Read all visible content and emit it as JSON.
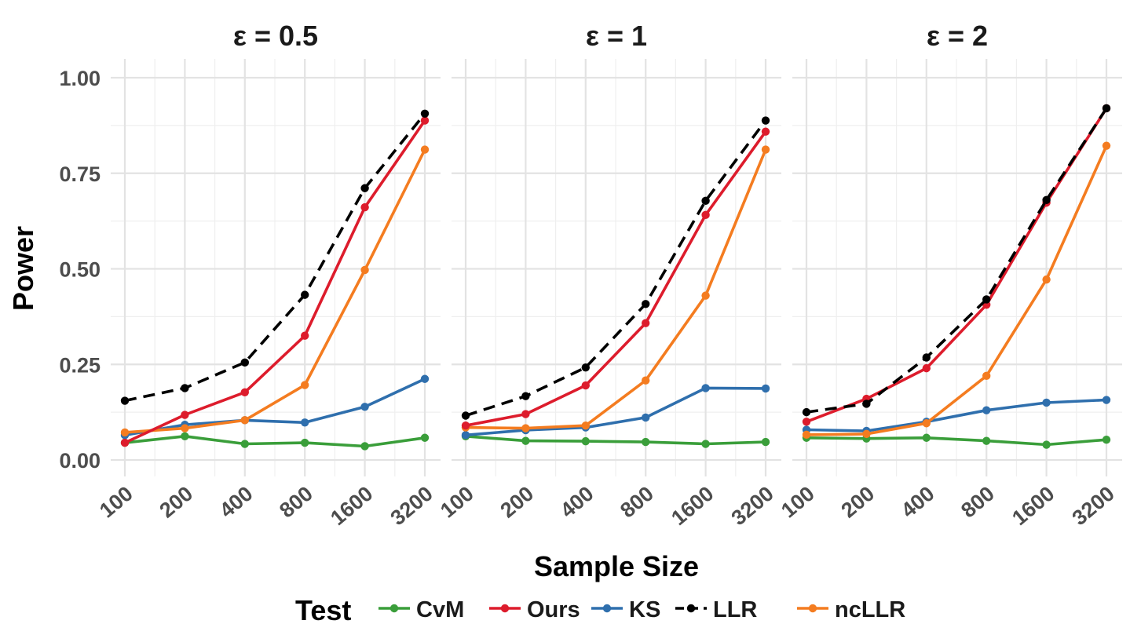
{
  "chart_data": {
    "type": "line",
    "xlabel": "Sample Size",
    "ylabel": "Power",
    "x_scale": "log2",
    "categories": [
      "100",
      "200",
      "400",
      "800",
      "1600",
      "3200"
    ],
    "x": [
      100,
      200,
      400,
      800,
      1600,
      3200
    ],
    "ylim": [
      0,
      1
    ],
    "yticks": [
      "0.00",
      "0.25",
      "0.50",
      "0.75",
      "1.00"
    ],
    "ytick_values": [
      0,
      0.25,
      0.5,
      0.75,
      1.0
    ],
    "grid": true,
    "legend": {
      "title": "Test",
      "position": "bottom",
      "entries": [
        {
          "name": "CvM",
          "color": "#3a9e3a",
          "dashed": false
        },
        {
          "name": "Ours",
          "color": "#dd1c2c",
          "dashed": false
        },
        {
          "name": "KS",
          "color": "#2f6fad",
          "dashed": false
        },
        {
          "name": "LLR",
          "color": "#000000",
          "dashed": true
        },
        {
          "name": "ncLLR",
          "color": "#f47c20",
          "dashed": false
        }
      ]
    },
    "panels": [
      {
        "title": "ε = 0.5",
        "series": [
          {
            "name": "CvM",
            "values": [
              0.045,
              0.062,
              0.042,
              0.045,
              0.036,
              0.058
            ]
          },
          {
            "name": "KS",
            "values": [
              0.065,
              0.092,
              0.104,
              0.098,
              0.139,
              0.212
            ]
          },
          {
            "name": "ncLLR",
            "values": [
              0.072,
              0.083,
              0.104,
              0.196,
              0.497,
              0.812
            ]
          },
          {
            "name": "Ours",
            "values": [
              0.045,
              0.118,
              0.177,
              0.325,
              0.661,
              0.888
            ]
          },
          {
            "name": "LLR",
            "values": [
              0.155,
              0.188,
              0.255,
              0.432,
              0.711,
              0.906
            ]
          }
        ]
      },
      {
        "title": "ε = 1",
        "series": [
          {
            "name": "CvM",
            "values": [
              0.062,
              0.05,
              0.049,
              0.047,
              0.042,
              0.047
            ]
          },
          {
            "name": "KS",
            "values": [
              0.065,
              0.078,
              0.085,
              0.111,
              0.188,
              0.187
            ]
          },
          {
            "name": "ncLLR",
            "values": [
              0.085,
              0.083,
              0.09,
              0.208,
              0.43,
              0.812
            ]
          },
          {
            "name": "Ours",
            "values": [
              0.09,
              0.12,
              0.195,
              0.358,
              0.641,
              0.859
            ]
          },
          {
            "name": "LLR",
            "values": [
              0.116,
              0.167,
              0.242,
              0.408,
              0.678,
              0.888
            ]
          }
        ]
      },
      {
        "title": "ε = 2",
        "series": [
          {
            "name": "CvM",
            "values": [
              0.058,
              0.056,
              0.058,
              0.05,
              0.04,
              0.053
            ]
          },
          {
            "name": "KS",
            "values": [
              0.079,
              0.076,
              0.1,
              0.13,
              0.15,
              0.157
            ]
          },
          {
            "name": "ncLLR",
            "values": [
              0.066,
              0.068,
              0.096,
              0.22,
              0.472,
              0.822
            ]
          },
          {
            "name": "Ours",
            "values": [
              0.1,
              0.16,
              0.24,
              0.406,
              0.673,
              0.92
            ]
          },
          {
            "name": "LLR",
            "values": [
              0.125,
              0.147,
              0.268,
              0.42,
              0.68,
              0.92
            ]
          }
        ]
      }
    ]
  }
}
